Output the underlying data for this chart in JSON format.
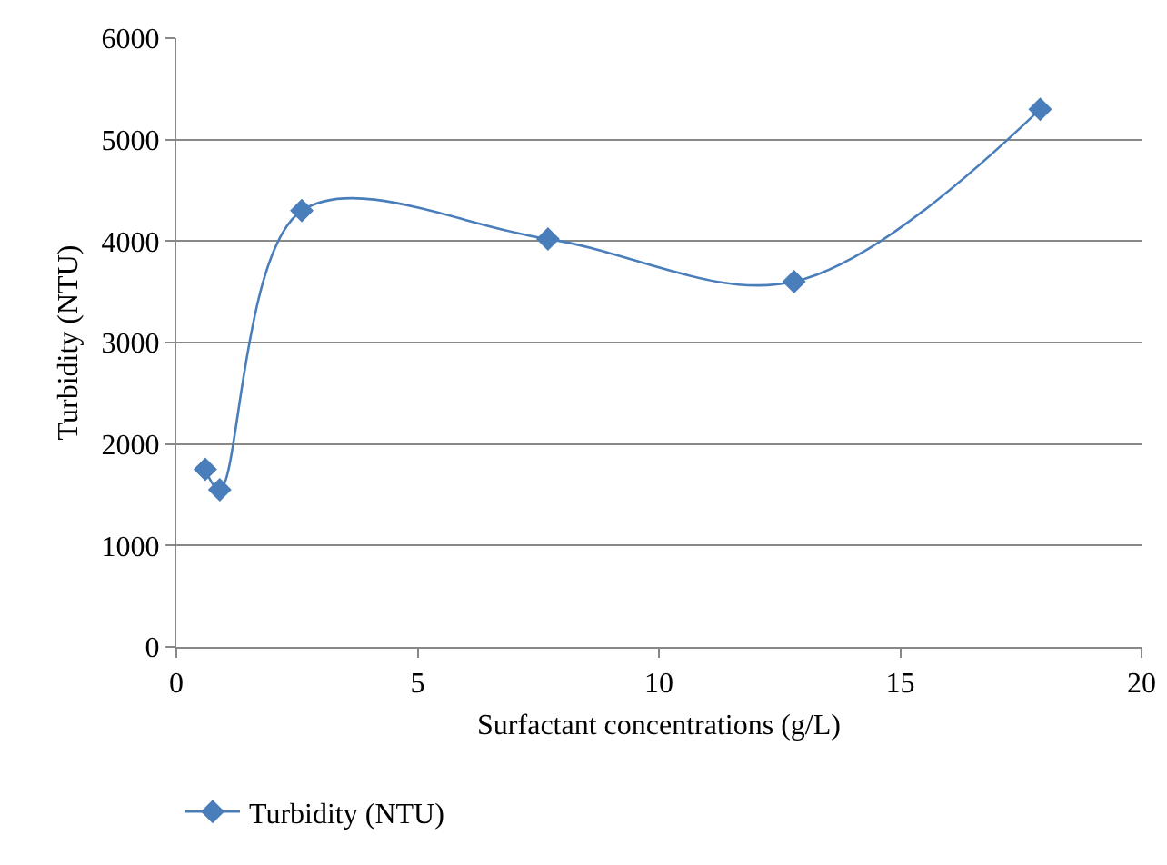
{
  "chart_data": {
    "type": "line",
    "xlabel": "Surfactant concentrations (g/L)",
    "ylabel": "Turbidity (NTU)",
    "x": [
      0.6,
      0.9,
      2.6,
      7.7,
      12.8,
      17.9
    ],
    "series": [
      {
        "name": "Turbidity (NTU)",
        "color": "#4a7ebb",
        "values": [
          1750,
          1550,
          4300,
          4020,
          3600,
          5300
        ]
      }
    ],
    "xlim": [
      0,
      20
    ],
    "xticks": [
      0,
      5,
      10,
      15,
      20
    ],
    "ylim": [
      0,
      6000
    ],
    "yticks": [
      0,
      1000,
      2000,
      3000,
      4000,
      5000,
      6000
    ],
    "grid": "y",
    "legend": "bottom",
    "marker": "diamond",
    "line_style": "solid"
  }
}
